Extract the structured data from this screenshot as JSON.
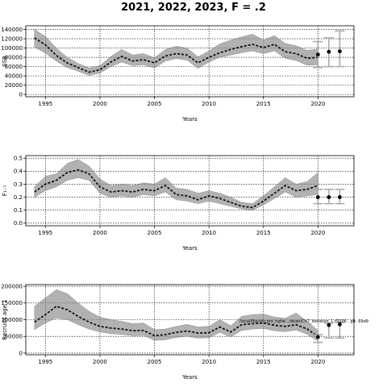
{
  "title": "2021, 2022, 2023, F = .2",
  "annotation": "/local/file/ctlr.pro_nghe.../dcan/Ch7_iteration_1 r5006 , git: 69d9",
  "chart_data": [
    {
      "type": "line",
      "name": "ssb",
      "xlabel": "Years",
      "ylabel": "SSB",
      "xlim": [
        1993.2,
        2023.3
      ],
      "ylim": [
        -5000,
        148000
      ],
      "xticks": [
        1995,
        2000,
        2005,
        2010,
        2015,
        2020
      ],
      "yticks": [
        0,
        20000,
        40000,
        60000,
        80000,
        100000,
        120000,
        140000
      ],
      "yticklabels": [
        "0",
        "20000",
        "40000",
        "60000",
        "80000",
        "100000",
        "120000",
        "140000"
      ],
      "grid": true,
      "x": [
        1994,
        1995,
        1996,
        1997,
        1998,
        1999,
        2000,
        2001,
        2002,
        2003,
        2004,
        2005,
        2006,
        2007,
        2008,
        2009,
        2010,
        2011,
        2012,
        2013,
        2014,
        2015,
        2016,
        2017,
        2018,
        2019,
        2020
      ],
      "median": [
        122000,
        107000,
        84000,
        68000,
        58000,
        48000,
        53000,
        70000,
        82000,
        72000,
        75000,
        68000,
        83000,
        88000,
        85000,
        68000,
        80000,
        90000,
        97000,
        103000,
        108000,
        101000,
        108000,
        92000,
        88000,
        78000,
        80000
      ],
      "lower": [
        102000,
        89000,
        72000,
        58000,
        50000,
        41000,
        46000,
        60000,
        70000,
        62000,
        64000,
        57000,
        72000,
        77000,
        74000,
        56000,
        70000,
        80000,
        85000,
        90000,
        94000,
        88000,
        94000,
        78000,
        73000,
        63000,
        64000
      ],
      "upper": [
        140000,
        125000,
        100000,
        80000,
        67000,
        57000,
        62000,
        82000,
        97000,
        85000,
        88000,
        79000,
        97000,
        104000,
        100000,
        81000,
        94000,
        109000,
        117000,
        124000,
        130000,
        117000,
        127000,
        110000,
        105000,
        95000,
        98000
      ],
      "projection": {
        "x": [
          2020,
          2021,
          2022
        ],
        "point": [
          86000,
          92000,
          93000
        ],
        "low": [
          58000,
          60000,
          60000
        ],
        "high": [
          114000,
          122000,
          137000
        ]
      }
    },
    {
      "type": "line",
      "name": "f",
      "xlabel": "Years",
      "ylabel": "F₁₋₇",
      "xlim": [
        1993.2,
        2023.3
      ],
      "ylim": [
        -0.02,
        0.52
      ],
      "xticks": [
        1995,
        2000,
        2005,
        2010,
        2015,
        2020
      ],
      "yticks": [
        0.0,
        0.1,
        0.2,
        0.3,
        0.4,
        0.5
      ],
      "yticklabels": [
        "0.0",
        "0.1",
        "0.2",
        "0.3",
        "0.4",
        "0.5"
      ],
      "grid": true,
      "x": [
        1994,
        1995,
        1996,
        1997,
        1998,
        1999,
        2000,
        2001,
        2002,
        2003,
        2004,
        2005,
        2006,
        2007,
        2008,
        2009,
        2010,
        2011,
        2012,
        2013,
        2014,
        2015,
        2016,
        2017,
        2018,
        2019,
        2020
      ],
      "median": [
        0.24,
        0.3,
        0.33,
        0.39,
        0.41,
        0.38,
        0.28,
        0.24,
        0.25,
        0.24,
        0.26,
        0.25,
        0.29,
        0.22,
        0.21,
        0.18,
        0.21,
        0.19,
        0.16,
        0.13,
        0.12,
        0.17,
        0.23,
        0.29,
        0.25,
        0.26,
        0.29
      ],
      "lower": [
        0.2,
        0.25,
        0.28,
        0.33,
        0.35,
        0.33,
        0.23,
        0.2,
        0.21,
        0.2,
        0.22,
        0.21,
        0.24,
        0.18,
        0.17,
        0.15,
        0.17,
        0.15,
        0.13,
        0.11,
        0.1,
        0.14,
        0.19,
        0.24,
        0.2,
        0.21,
        0.22
      ],
      "upper": [
        0.28,
        0.36,
        0.38,
        0.46,
        0.49,
        0.44,
        0.34,
        0.29,
        0.3,
        0.29,
        0.31,
        0.3,
        0.35,
        0.27,
        0.26,
        0.23,
        0.25,
        0.23,
        0.2,
        0.16,
        0.15,
        0.21,
        0.28,
        0.35,
        0.3,
        0.32,
        0.39
      ],
      "projection": {
        "x": [
          2020,
          2021,
          2022
        ],
        "point": [
          0.2,
          0.2,
          0.2
        ],
        "low": [
          0.15,
          0.15,
          0.15
        ],
        "high": [
          0.26,
          0.26,
          0.26
        ]
      }
    },
    {
      "type": "line",
      "name": "recruits",
      "xlabel": "Years",
      "ylabel": "Recruits age 1",
      "xlim": [
        1993.2,
        2023.3
      ],
      "ylim": [
        -5000,
        205000
      ],
      "xticks": [
        1995,
        2000,
        2005,
        2010,
        2015,
        2020
      ],
      "yticks": [
        0,
        50000,
        100000,
        150000,
        200000
      ],
      "yticklabels": [
        "0",
        "50000",
        "100000",
        "150000",
        "200000"
      ],
      "grid": true,
      "x": [
        1994,
        1995,
        1996,
        1997,
        1998,
        1999,
        2000,
        2001,
        2002,
        2003,
        2004,
        2005,
        2006,
        2007,
        2008,
        2009,
        2010,
        2011,
        2012,
        2013,
        2014,
        2015,
        2016,
        2017,
        2018,
        2019,
        2020
      ],
      "median": [
        93000,
        115000,
        140000,
        130000,
        110000,
        93000,
        80000,
        75000,
        72000,
        67000,
        68000,
        52000,
        55000,
        62000,
        66000,
        60000,
        61000,
        78000,
        63000,
        85000,
        88000,
        90000,
        83000,
        80000,
        85000,
        72000,
        50000
      ],
      "lower": [
        70000,
        90000,
        105000,
        100000,
        85000,
        72000,
        63000,
        58000,
        56000,
        52000,
        53000,
        38000,
        40000,
        47000,
        50000,
        45000,
        46000,
        62000,
        48000,
        68000,
        72000,
        74000,
        67000,
        64000,
        69000,
        56000,
        36000
      ],
      "upper": [
        140000,
        165000,
        190000,
        178000,
        150000,
        125000,
        108000,
        100000,
        95000,
        88000,
        90000,
        70000,
        72000,
        80000,
        86000,
        78000,
        80000,
        100000,
        82000,
        110000,
        115000,
        117000,
        108000,
        104000,
        120000,
        95000,
        68000
      ],
      "projection": {
        "x": [
          2020,
          2021,
          2022
        ],
        "point": [
          48000,
          84000,
          86000
        ],
        "low": [
          32000,
          45000,
          45000
        ],
        "high": [
          55000,
          90000,
          92000
        ]
      }
    }
  ]
}
